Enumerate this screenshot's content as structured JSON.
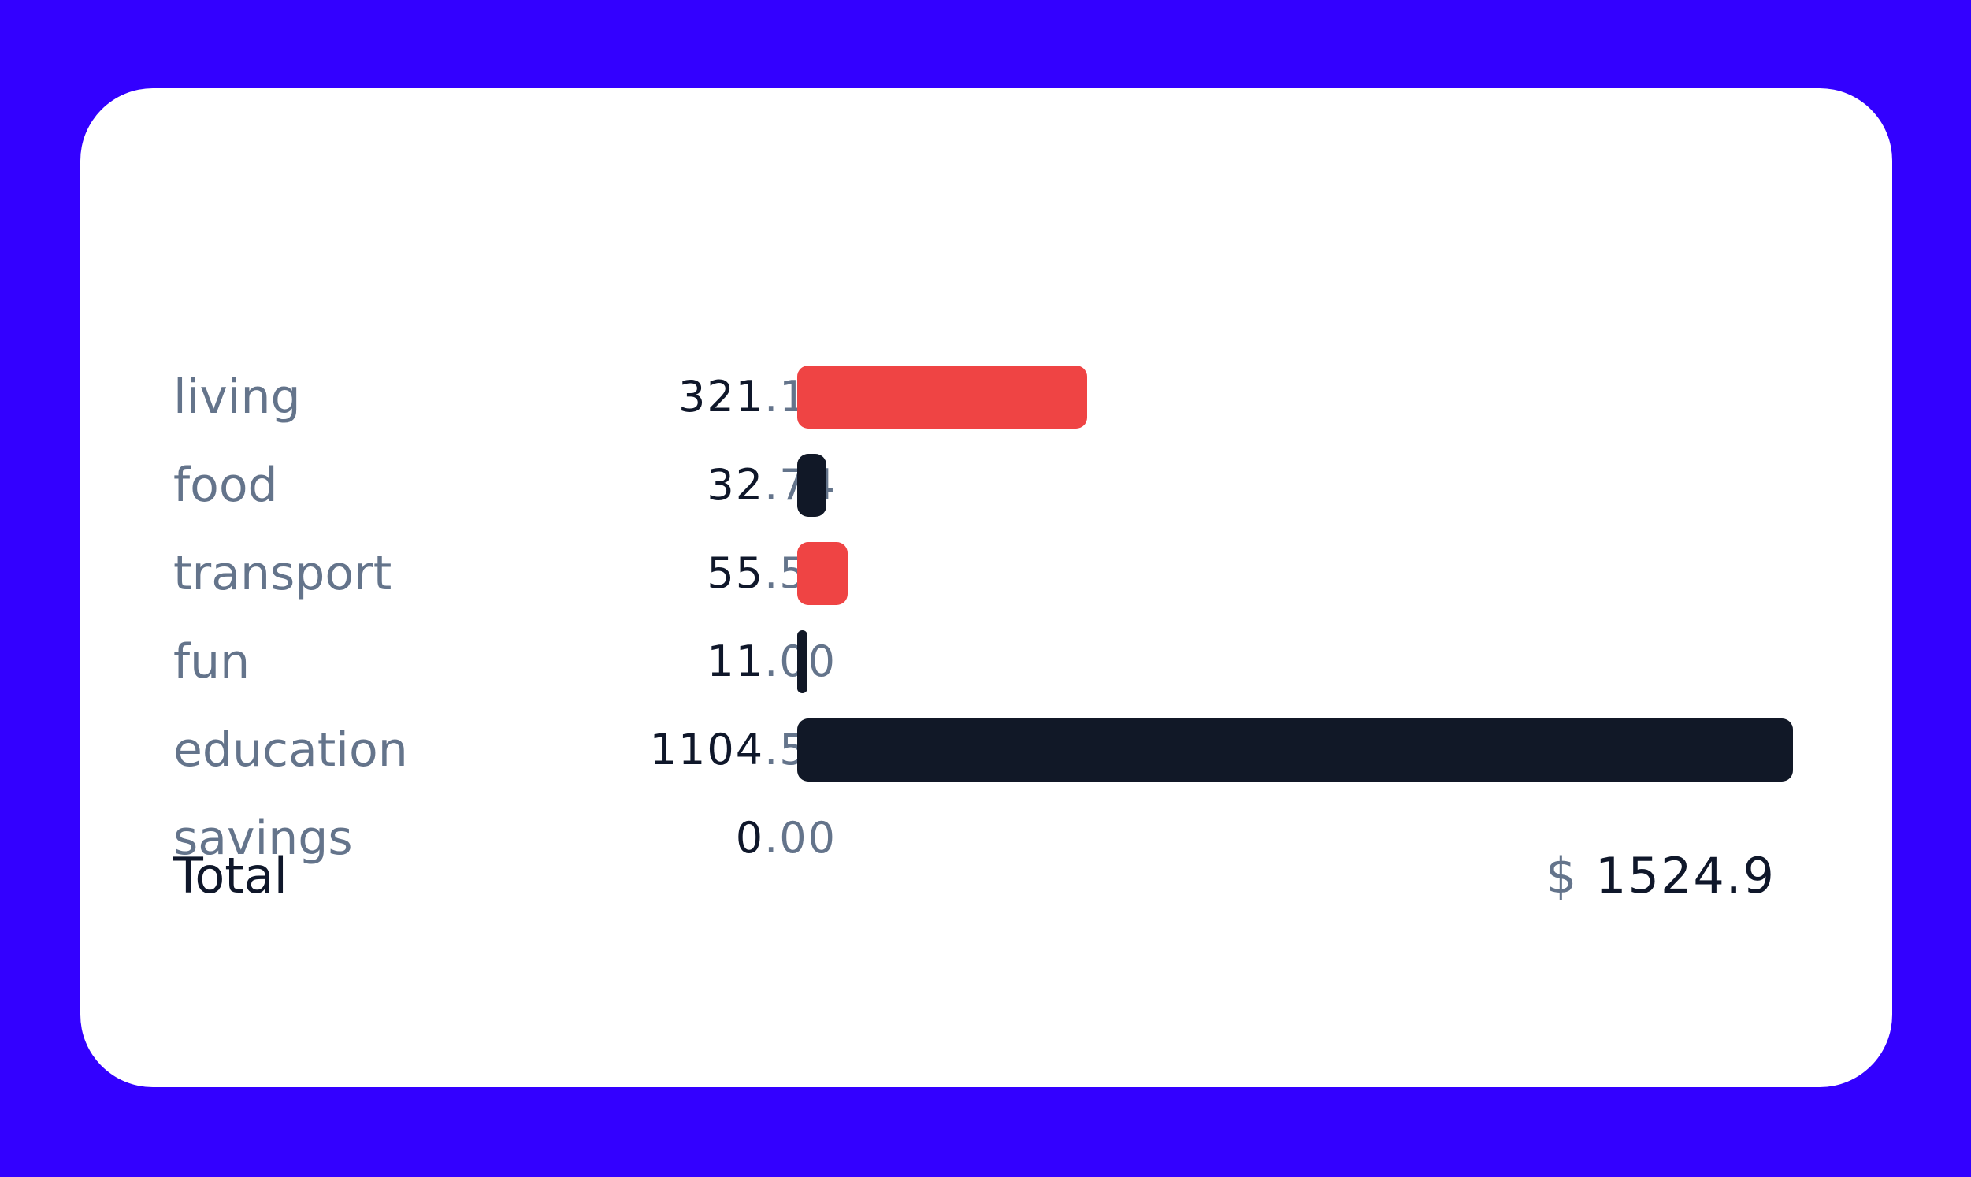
{
  "chart_data": {
    "type": "bar",
    "orientation": "horizontal",
    "categories": [
      "living",
      "food",
      "transport",
      "fun",
      "education",
      "savings"
    ],
    "values": [
      321.16,
      32.74,
      55.5,
      11.0,
      1104.5,
      0.0
    ],
    "value_labels": [
      {
        "int": "321",
        "dec": ".16"
      },
      {
        "int": "32",
        "dec": ".74"
      },
      {
        "int": "55",
        "dec": ".50"
      },
      {
        "int": "11",
        "dec": ".00"
      },
      {
        "int": "1104",
        "dec": ".50"
      },
      {
        "int": "0",
        "dec": ".00"
      }
    ],
    "bar_colors": [
      "#ef4444",
      "#111827",
      "#ef4444",
      "#111827",
      "#111827",
      "#ef4444"
    ],
    "xlim": [
      0,
      1104.5
    ],
    "grid": false,
    "legend": "none"
  },
  "total": {
    "label": "Total",
    "currency": "$",
    "value": "1524.9"
  },
  "colors": {
    "background": "#3300ff",
    "card": "#ffffff",
    "label": "#64748b",
    "text_dark": "#0f172a",
    "red": "#ef4444",
    "navy": "#111827"
  }
}
